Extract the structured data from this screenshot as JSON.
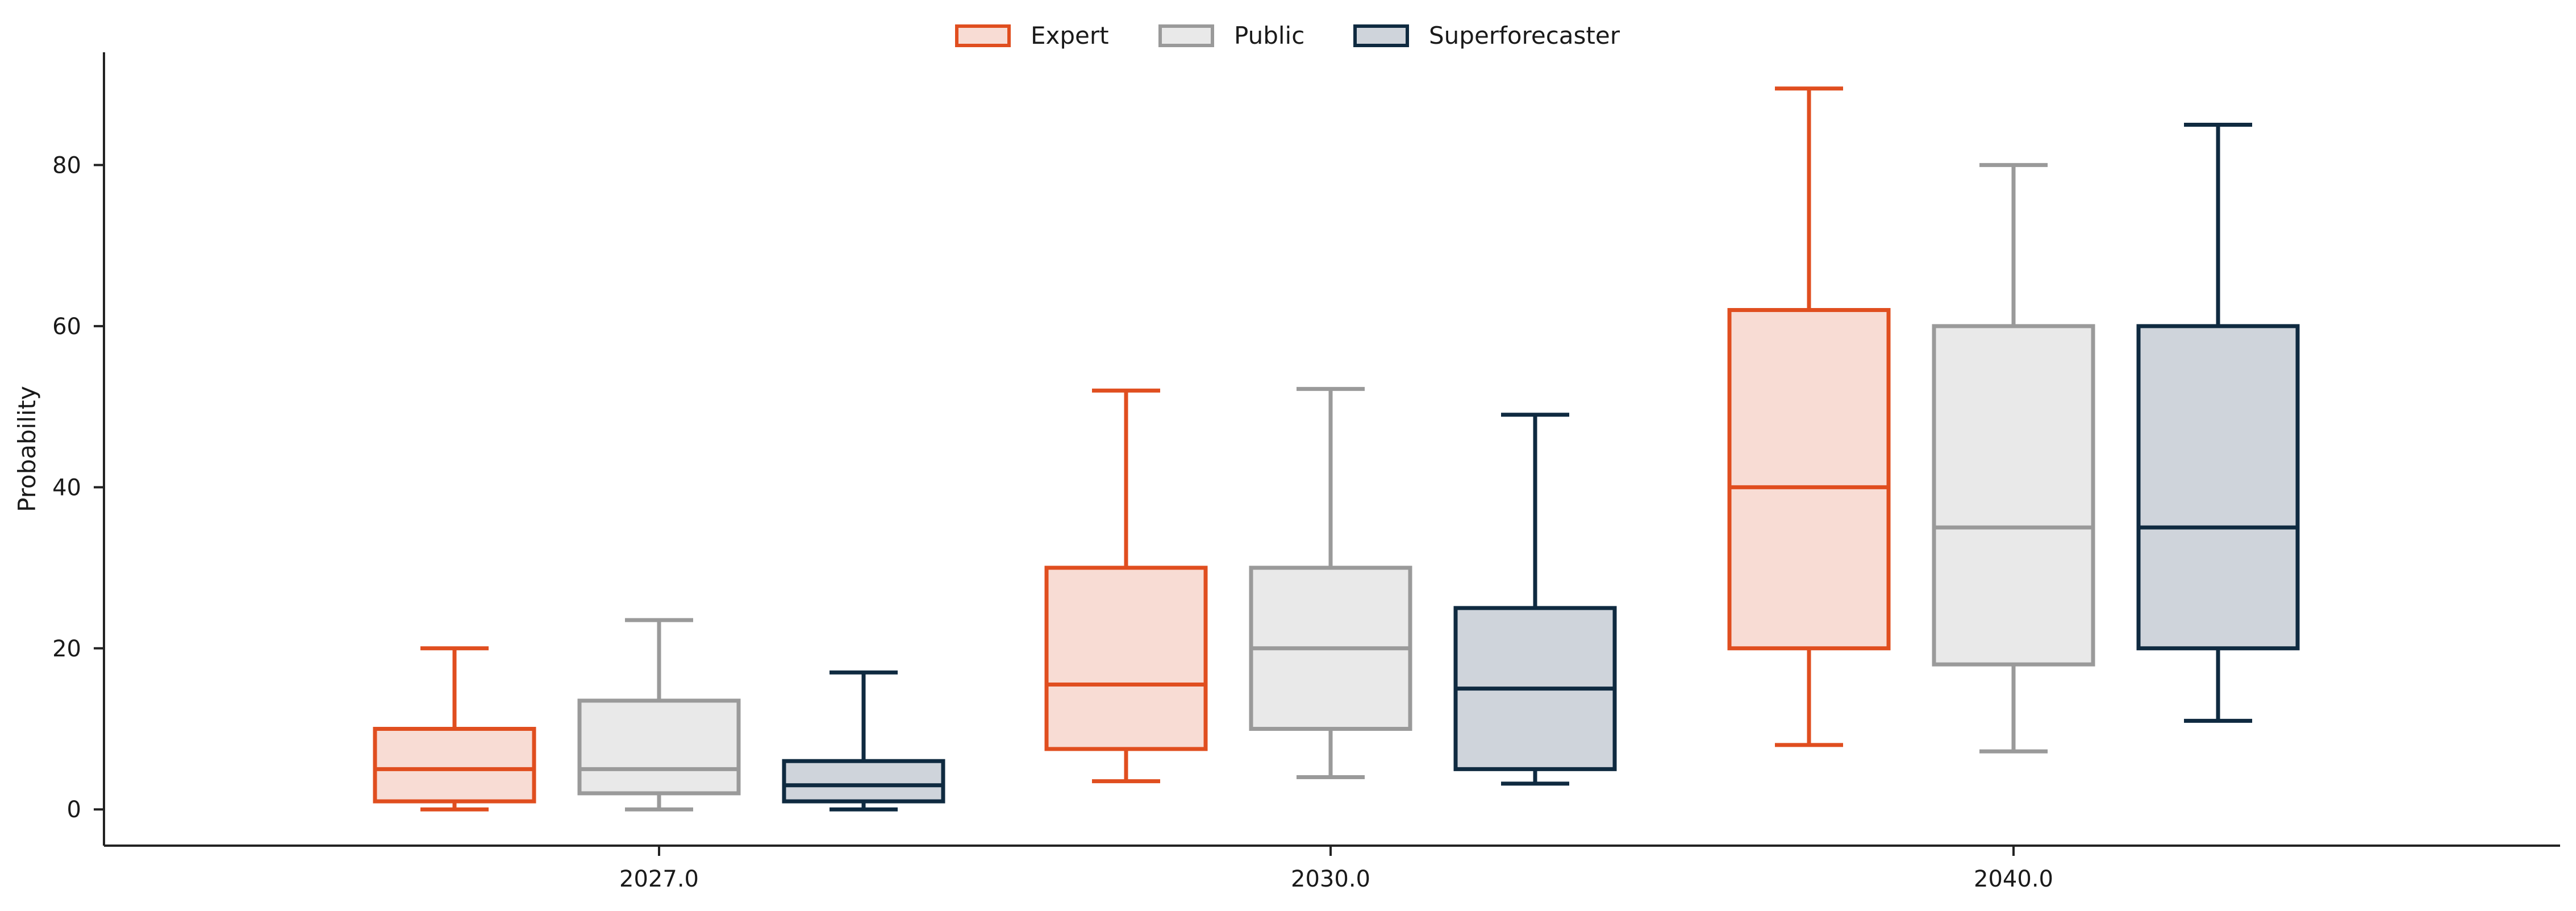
{
  "chart_data": {
    "type": "box",
    "ylabel": "Probability",
    "xlabel": "",
    "categories": [
      "2027.0",
      "2030.0",
      "2040.0"
    ],
    "ylim": [
      -4.5,
      94
    ],
    "yticks": [
      0,
      20,
      40,
      60,
      80
    ],
    "legend_position": "top-center",
    "series": [
      {
        "name": "Expert",
        "stroke": "#e04e1f",
        "fill": "#f8dcd4",
        "boxes": [
          {
            "whisker_low": 0,
            "q1": 1,
            "median": 5,
            "q3": 10,
            "whisker_high": 20
          },
          {
            "whisker_low": 3.5,
            "q1": 7.5,
            "median": 15.5,
            "q3": 30,
            "whisker_high": 52
          },
          {
            "whisker_low": 8,
            "q1": 20,
            "median": 40,
            "q3": 62,
            "whisker_high": 89.5
          }
        ]
      },
      {
        "name": "Public",
        "stroke": "#9a9a9a",
        "fill": "#e9e9e9",
        "boxes": [
          {
            "whisker_low": 0,
            "q1": 2,
            "median": 5,
            "q3": 13.5,
            "whisker_high": 23.5
          },
          {
            "whisker_low": 4,
            "q1": 10,
            "median": 20,
            "q3": 30,
            "whisker_high": 52.2
          },
          {
            "whisker_low": 7.2,
            "q1": 18,
            "median": 35,
            "q3": 60,
            "whisker_high": 80
          }
        ]
      },
      {
        "name": "Superforecaster",
        "stroke": "#0f2a40",
        "fill": "#cfd4db",
        "boxes": [
          {
            "whisker_low": 0,
            "q1": 1,
            "median": 3,
            "q3": 6,
            "whisker_high": 17
          },
          {
            "whisker_low": 3.2,
            "q1": 5,
            "median": 15,
            "q3": 25,
            "whisker_high": 49
          },
          {
            "whisker_low": 11,
            "q1": 20,
            "median": 35,
            "q3": 60,
            "whisker_high": 85
          }
        ]
      }
    ]
  }
}
